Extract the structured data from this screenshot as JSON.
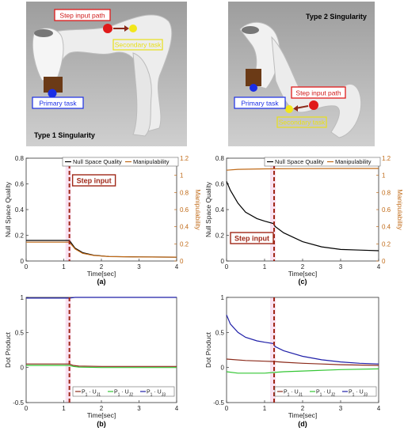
{
  "images": {
    "left": {
      "caption": "Type 1 Singularity",
      "labels": {
        "step_input_path": "Step input path",
        "secondary_task": "Secondary task",
        "primary_task": "Primary task"
      }
    },
    "right": {
      "caption": "Type 2 Singularity",
      "labels": {
        "step_input_path": "Step input path",
        "secondary_task": "Secondary task",
        "primary_task": "Primary task"
      }
    }
  },
  "chart_data": [
    {
      "id": "a",
      "type": "line",
      "sublabel": "(a)",
      "xlabel": "Time[sec]",
      "ylabel": "Null Space Quality",
      "ylabel_right": "Manipulability",
      "xlim": [
        0,
        4
      ],
      "ylim": [
        0,
        0.8
      ],
      "ylim_right": [
        0,
        1.2
      ],
      "x_ticks": [
        "0",
        "1",
        "2",
        "3",
        "4"
      ],
      "y_ticks": [
        "0",
        "0.2",
        "0.4",
        "0.6",
        "0.8"
      ],
      "y_ticks_right": [
        "0",
        "0.2",
        "0.4",
        "0.6",
        "0.8",
        "1",
        "1.2"
      ],
      "step_time": 1.15,
      "step_label": "Step input",
      "legend": "top-right",
      "series": [
        {
          "name": "Null Space Quality",
          "axis": "left",
          "color": "#000000",
          "x": [
            0,
            1.15,
            1.3,
            1.5,
            1.8,
            2.2,
            3,
            4
          ],
          "y": [
            0.16,
            0.16,
            0.1,
            0.065,
            0.045,
            0.035,
            0.032,
            0.03
          ]
        },
        {
          "name": "Manipulability",
          "axis": "right",
          "color": "#c06a17",
          "x": [
            0,
            1.15,
            1.3,
            1.5,
            1.8,
            2.2,
            3,
            4
          ],
          "y": [
            0.22,
            0.22,
            0.14,
            0.09,
            0.065,
            0.052,
            0.047,
            0.045
          ]
        }
      ]
    },
    {
      "id": "c",
      "type": "line",
      "sublabel": "(c)",
      "xlabel": "Time[sec]",
      "ylabel": "Null Space Quality",
      "ylabel_right": "Manipulability",
      "xlim": [
        0,
        4
      ],
      "ylim": [
        0,
        0.8
      ],
      "ylim_right": [
        0,
        1.2
      ],
      "x_ticks": [
        "0",
        "1",
        "2",
        "3",
        "4"
      ],
      "y_ticks": [
        "0",
        "0.2",
        "0.4",
        "0.6",
        "0.8"
      ],
      "y_ticks_right": [
        "0",
        "0.2",
        "0.4",
        "0.6",
        "0.8",
        "1",
        "1.2"
      ],
      "step_time": 1.25,
      "step_label": "Step input",
      "legend": "top-right",
      "series": [
        {
          "name": "Null Space Quality",
          "axis": "left",
          "color": "#000000",
          "x": [
            0,
            0.1,
            0.3,
            0.5,
            0.8,
            1.0,
            1.25,
            1.27,
            1.5,
            2.0,
            2.5,
            3.0,
            3.5,
            4.0
          ],
          "y": [
            0.62,
            0.55,
            0.45,
            0.38,
            0.33,
            0.31,
            0.29,
            0.27,
            0.22,
            0.15,
            0.11,
            0.09,
            0.085,
            0.08
          ]
        },
        {
          "name": "Manipulability",
          "axis": "right",
          "color": "#c06a17",
          "x": [
            0,
            0.3,
            1.0,
            2.0,
            3.0,
            4.0
          ],
          "y": [
            1.06,
            1.07,
            1.075,
            1.078,
            1.08,
            1.08
          ]
        }
      ]
    },
    {
      "id": "b",
      "type": "line",
      "sublabel": "(b)",
      "xlabel": "Time[sec]",
      "ylabel": "Dot Product",
      "xlim": [
        0,
        4
      ],
      "ylim": [
        -0.5,
        1
      ],
      "x_ticks": [
        "0",
        "1",
        "2",
        "3",
        "4"
      ],
      "y_ticks": [
        "-0.5",
        "0",
        "0.5",
        "1"
      ],
      "step_time": 1.15,
      "legend": "bottom-right",
      "series": [
        {
          "name": "P1·UJ1",
          "label_main": "P",
          "sub1": "1",
          "mid": " · U",
          "sub2": "J1",
          "color": "#8b2a1a",
          "x": [
            0,
            1.15,
            1.25,
            1.4,
            2,
            4
          ],
          "y": [
            0.05,
            0.05,
            0.03,
            0.02,
            0.015,
            0.015
          ]
        },
        {
          "name": "P1·UJ2",
          "label_main": "P",
          "sub1": "1",
          "mid": " · U",
          "sub2": "J2",
          "color": "#34c634",
          "x": [
            0,
            1.15,
            1.25,
            1.4,
            2,
            4
          ],
          "y": [
            0.03,
            0.03,
            0.015,
            0.005,
            0.0,
            0.0
          ]
        },
        {
          "name": "P1·UJ3",
          "label_main": "P",
          "sub1": "1",
          "mid": " · U",
          "sub2": "J3",
          "color": "#1f1fa8",
          "x": [
            0,
            1.15,
            1.3,
            2,
            4
          ],
          "y": [
            0.99,
            0.99,
            1.0,
            1.0,
            1.0
          ]
        }
      ]
    },
    {
      "id": "d",
      "type": "line",
      "sublabel": "(d)",
      "xlabel": "Time[sec]",
      "ylabel": "Dot Product",
      "xlim": [
        0,
        4
      ],
      "ylim": [
        -0.5,
        1
      ],
      "x_ticks": [
        "0",
        "1",
        "2",
        "3",
        "4"
      ],
      "y_ticks": [
        "-0.5",
        "0",
        "0.5",
        "1"
      ],
      "step_time": 1.25,
      "legend": "bottom-right",
      "series": [
        {
          "name": "P1·UJ1",
          "label_main": "P",
          "sub1": "1",
          "mid": " · U",
          "sub2": "J1",
          "color": "#8b2a1a",
          "x": [
            0,
            0.5,
            1.0,
            1.25,
            1.5,
            2.0,
            2.5,
            3.0,
            4.0
          ],
          "y": [
            0.12,
            0.1,
            0.09,
            0.085,
            0.075,
            0.06,
            0.05,
            0.04,
            0.03
          ]
        },
        {
          "name": "P1·UJ2",
          "label_main": "P",
          "sub1": "1",
          "mid": " · U",
          "sub2": "J2",
          "color": "#34c634",
          "x": [
            0,
            0.3,
            0.6,
            1.0,
            1.25,
            1.5,
            2.0,
            3.0,
            4.0
          ],
          "y": [
            -0.06,
            -0.08,
            -0.08,
            -0.08,
            -0.07,
            -0.06,
            -0.05,
            -0.03,
            -0.02
          ]
        },
        {
          "name": "P1·UJ3",
          "label_main": "P",
          "sub1": "1",
          "mid": " · U",
          "sub2": "J3",
          "color": "#1f1fa8",
          "x": [
            0,
            0.1,
            0.3,
            0.5,
            0.8,
            1.0,
            1.25,
            1.27,
            1.5,
            2.0,
            2.5,
            3.0,
            3.5,
            4.0
          ],
          "y": [
            0.75,
            0.62,
            0.5,
            0.43,
            0.38,
            0.36,
            0.34,
            0.3,
            0.24,
            0.16,
            0.11,
            0.08,
            0.06,
            0.05
          ]
        }
      ]
    }
  ]
}
